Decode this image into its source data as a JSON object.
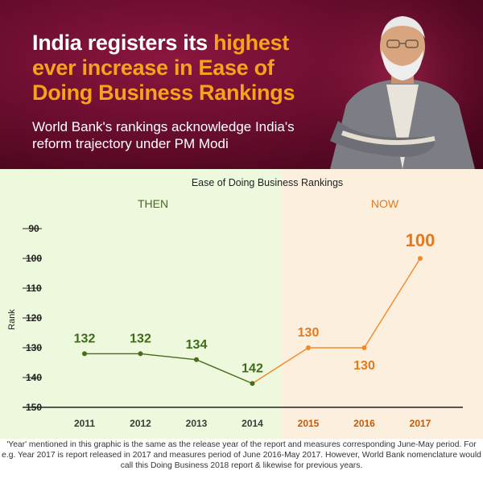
{
  "header": {
    "headline_part1": "India registers its ",
    "headline_highlight": "highest",
    "headline_part2": " ever increase in Ease of Doing Business Rankings",
    "subheadline": "World Bank's rankings acknowledge India's reform trajectory under PM Modi"
  },
  "colors": {
    "then_bg": "#eef8dc",
    "now_bg": "#fdefde",
    "then_series": "#4a6b1c",
    "now_series": "#ef8a2a",
    "highlight": "#f7a21b"
  },
  "chart_data": {
    "type": "line",
    "title": "Ease of Doing Business Rankings",
    "ylabel": "Rank",
    "xlabel": "",
    "categories": [
      "2011",
      "2012",
      "2013",
      "2014",
      "2015",
      "2016",
      "2017"
    ],
    "ylim": [
      150,
      90
    ],
    "yticks": [
      90,
      100,
      110,
      120,
      130,
      140,
      150
    ],
    "y_inverted": true,
    "periods": [
      {
        "label": "THEN",
        "categories": [
          "2011",
          "2012",
          "2013",
          "2014"
        ]
      },
      {
        "label": "NOW",
        "categories": [
          "2015",
          "2016",
          "2017"
        ]
      }
    ],
    "series": [
      {
        "values": [
          132,
          132,
          134,
          142,
          130,
          130,
          100
        ]
      }
    ],
    "data_labels": [
      "132",
      "132",
      "134",
      "142",
      "130",
      "130",
      "100"
    ]
  },
  "footnote": "'Year' mentioned in this graphic is the same as the release year of the report and measures corresponding June-May period. For e.g. Year 2017 is report released in 2017 and measures period of June 2016-May 2017. However, World Bank nomenclature would call this Doing Business 2018 report & likewise for previous years."
}
